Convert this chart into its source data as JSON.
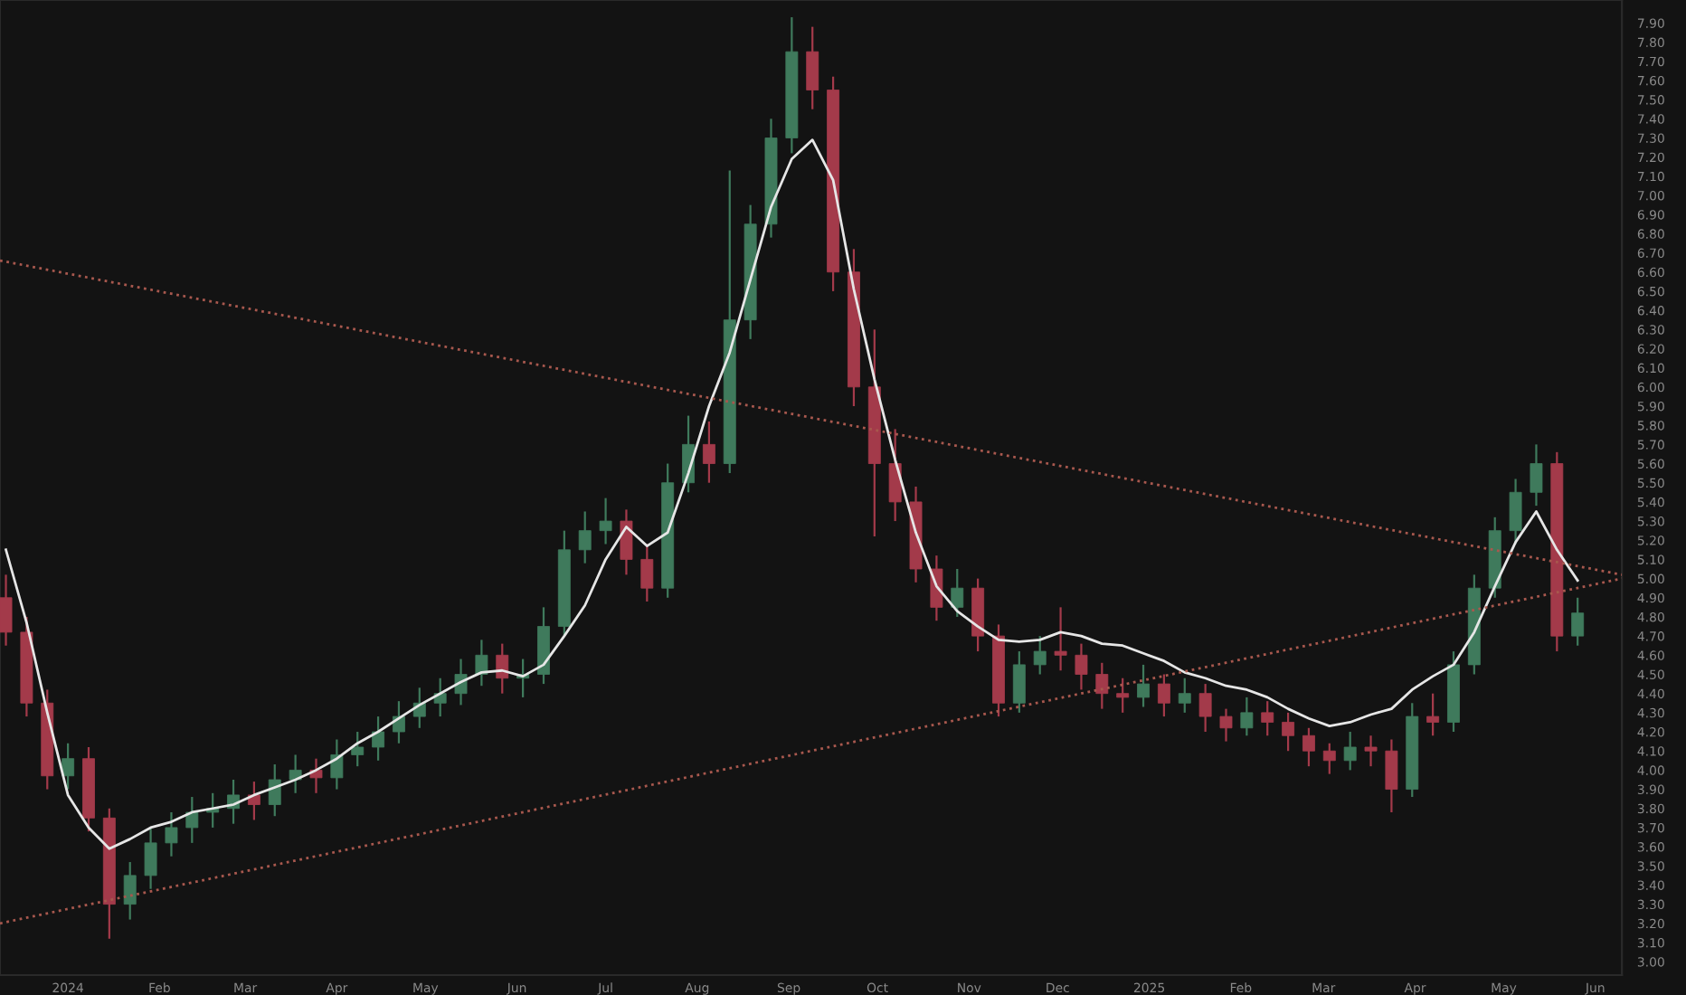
{
  "chart_data": {
    "type": "candlestick",
    "x": [
      "2023-12-11",
      "2023-12-18",
      "2023-12-25",
      "2024-01-01",
      "2024-01-08",
      "2024-01-15",
      "2024-01-22",
      "2024-01-29",
      "2024-02-05",
      "2024-02-12",
      "2024-02-19",
      "2024-02-26",
      "2024-03-04",
      "2024-03-11",
      "2024-03-18",
      "2024-03-25",
      "2024-04-01",
      "2024-04-08",
      "2024-04-15",
      "2024-04-22",
      "2024-04-29",
      "2024-05-06",
      "2024-05-13",
      "2024-05-20",
      "2024-05-27",
      "2024-06-03",
      "2024-06-10",
      "2024-06-17",
      "2024-06-24",
      "2024-07-01",
      "2024-07-08",
      "2024-07-15",
      "2024-07-22",
      "2024-07-29",
      "2024-08-05",
      "2024-08-12",
      "2024-08-19",
      "2024-08-26",
      "2024-09-02",
      "2024-09-09",
      "2024-09-16",
      "2024-09-23",
      "2024-09-30",
      "2024-10-07",
      "2024-10-14",
      "2024-10-21",
      "2024-10-28",
      "2024-11-04",
      "2024-11-11",
      "2024-11-18",
      "2024-11-25",
      "2024-12-02",
      "2024-12-09",
      "2024-12-16",
      "2024-12-23",
      "2024-12-30",
      "2025-01-06",
      "2025-01-13",
      "2025-01-20",
      "2025-01-27",
      "2025-02-03",
      "2025-02-10",
      "2025-02-17",
      "2025-02-24",
      "2025-03-03",
      "2025-03-10",
      "2025-03-17",
      "2025-03-24",
      "2025-03-31",
      "2025-04-07",
      "2025-04-14",
      "2025-04-21",
      "2025-04-28",
      "2025-05-05",
      "2025-05-12",
      "2025-05-19",
      "2025-05-26"
    ],
    "ohlc": [
      [
        4.9,
        5.02,
        4.65,
        4.72
      ],
      [
        4.72,
        4.8,
        4.28,
        4.35
      ],
      [
        4.35,
        4.42,
        3.9,
        3.97
      ],
      [
        3.97,
        4.14,
        3.9,
        4.06
      ],
      [
        4.06,
        4.12,
        3.68,
        3.75
      ],
      [
        3.75,
        3.8,
        3.12,
        3.3
      ],
      [
        3.3,
        3.52,
        3.22,
        3.45
      ],
      [
        3.45,
        3.7,
        3.38,
        3.62
      ],
      [
        3.62,
        3.78,
        3.55,
        3.7
      ],
      [
        3.7,
        3.86,
        3.62,
        3.78
      ],
      [
        3.78,
        3.88,
        3.7,
        3.8
      ],
      [
        3.8,
        3.95,
        3.72,
        3.87
      ],
      [
        3.87,
        3.94,
        3.74,
        3.82
      ],
      [
        3.82,
        4.03,
        3.76,
        3.95
      ],
      [
        3.95,
        4.08,
        3.88,
        4.0
      ],
      [
        4.0,
        4.06,
        3.88,
        3.96
      ],
      [
        3.96,
        4.16,
        3.9,
        4.08
      ],
      [
        4.08,
        4.2,
        4.02,
        4.12
      ],
      [
        4.12,
        4.28,
        4.05,
        4.2
      ],
      [
        4.2,
        4.36,
        4.14,
        4.28
      ],
      [
        4.28,
        4.43,
        4.22,
        4.35
      ],
      [
        4.35,
        4.48,
        4.28,
        4.4
      ],
      [
        4.4,
        4.58,
        4.34,
        4.5
      ],
      [
        4.5,
        4.68,
        4.44,
        4.6
      ],
      [
        4.6,
        4.66,
        4.4,
        4.48
      ],
      [
        4.48,
        4.58,
        4.38,
        4.5
      ],
      [
        4.5,
        4.85,
        4.45,
        4.75
      ],
      [
        4.75,
        5.25,
        4.7,
        5.15
      ],
      [
        5.15,
        5.35,
        5.08,
        5.25
      ],
      [
        5.25,
        5.42,
        5.18,
        5.3
      ],
      [
        5.3,
        5.36,
        5.02,
        5.1
      ],
      [
        5.1,
        5.18,
        4.88,
        4.95
      ],
      [
        4.95,
        5.6,
        4.9,
        5.5
      ],
      [
        5.5,
        5.85,
        5.45,
        5.7
      ],
      [
        5.7,
        5.82,
        5.5,
        5.6
      ],
      [
        5.6,
        7.13,
        5.55,
        6.35
      ],
      [
        6.35,
        6.95,
        6.25,
        6.85
      ],
      [
        6.85,
        7.4,
        6.78,
        7.3
      ],
      [
        7.3,
        7.93,
        7.22,
        7.75
      ],
      [
        7.75,
        7.88,
        7.45,
        7.55
      ],
      [
        7.55,
        7.62,
        6.5,
        6.6
      ],
      [
        6.6,
        6.72,
        5.9,
        6.0
      ],
      [
        6.0,
        6.3,
        5.22,
        5.6
      ],
      [
        5.6,
        5.78,
        5.3,
        5.4
      ],
      [
        5.4,
        5.48,
        4.98,
        5.05
      ],
      [
        5.05,
        5.12,
        4.78,
        4.85
      ],
      [
        4.85,
        5.05,
        4.8,
        4.95
      ],
      [
        4.95,
        5.0,
        4.62,
        4.7
      ],
      [
        4.7,
        4.76,
        4.28,
        4.35
      ],
      [
        4.35,
        4.62,
        4.3,
        4.55
      ],
      [
        4.55,
        4.7,
        4.5,
        4.62
      ],
      [
        4.62,
        4.85,
        4.52,
        4.6
      ],
      [
        4.6,
        4.66,
        4.42,
        4.5
      ],
      [
        4.5,
        4.56,
        4.32,
        4.4
      ],
      [
        4.4,
        4.48,
        4.3,
        4.38
      ],
      [
        4.38,
        4.55,
        4.33,
        4.45
      ],
      [
        4.45,
        4.5,
        4.28,
        4.35
      ],
      [
        4.35,
        4.48,
        4.3,
        4.4
      ],
      [
        4.4,
        4.45,
        4.2,
        4.28
      ],
      [
        4.28,
        4.32,
        4.15,
        4.22
      ],
      [
        4.22,
        4.38,
        4.18,
        4.3
      ],
      [
        4.3,
        4.36,
        4.18,
        4.25
      ],
      [
        4.25,
        4.3,
        4.1,
        4.18
      ],
      [
        4.18,
        4.22,
        4.02,
        4.1
      ],
      [
        4.1,
        4.14,
        3.98,
        4.05
      ],
      [
        4.05,
        4.2,
        4.0,
        4.12
      ],
      [
        4.12,
        4.18,
        4.02,
        4.1
      ],
      [
        4.1,
        4.16,
        3.78,
        3.9
      ],
      [
        3.9,
        4.35,
        3.86,
        4.28
      ],
      [
        4.28,
        4.4,
        4.18,
        4.25
      ],
      [
        4.25,
        4.62,
        4.2,
        4.55
      ],
      [
        4.55,
        5.02,
        4.5,
        4.95
      ],
      [
        4.95,
        5.32,
        4.9,
        5.25
      ],
      [
        5.25,
        5.52,
        5.18,
        5.45
      ],
      [
        5.45,
        5.7,
        5.38,
        5.6
      ],
      [
        5.6,
        5.66,
        4.62,
        4.7
      ],
      [
        4.7,
        4.9,
        4.65,
        4.82
      ]
    ],
    "series": [
      {
        "type": "line",
        "color": "#e6e6e6",
        "line_style": "solid",
        "x": [
          "2023-12-11",
          "2023-12-18",
          "2023-12-25",
          "2024-01-01",
          "2024-01-08",
          "2024-01-15",
          "2024-01-22",
          "2024-01-29",
          "2024-02-05",
          "2024-02-12",
          "2024-02-19",
          "2024-02-26",
          "2024-03-04",
          "2024-03-11",
          "2024-03-18",
          "2024-03-25",
          "2024-04-01",
          "2024-04-08",
          "2024-04-15",
          "2024-04-22",
          "2024-04-29",
          "2024-05-06",
          "2024-05-13",
          "2024-05-20",
          "2024-05-27",
          "2024-06-03",
          "2024-06-10",
          "2024-06-17",
          "2024-06-24",
          "2024-07-01",
          "2024-07-08",
          "2024-07-15",
          "2024-07-22",
          "2024-07-29",
          "2024-08-05",
          "2024-08-12",
          "2024-08-19",
          "2024-08-26",
          "2024-09-02",
          "2024-09-09",
          "2024-09-16",
          "2024-09-23",
          "2024-09-30",
          "2024-10-07",
          "2024-10-14",
          "2024-10-21",
          "2024-10-28",
          "2024-11-04",
          "2024-11-11",
          "2024-11-18",
          "2024-11-25",
          "2024-12-02",
          "2024-12-09",
          "2024-12-16",
          "2024-12-23",
          "2024-12-30",
          "2025-01-06",
          "2025-01-13",
          "2025-01-20",
          "2025-01-27",
          "2025-02-03",
          "2025-02-10",
          "2025-02-17",
          "2025-02-24",
          "2025-03-03",
          "2025-03-10",
          "2025-03-17",
          "2025-03-24",
          "2025-03-31",
          "2025-04-07",
          "2025-04-14",
          "2025-04-21",
          "2025-04-28",
          "2025-05-05",
          "2025-05-12",
          "2025-05-19",
          "2025-05-26"
        ],
        "values": [
          5.15,
          4.77,
          4.3,
          3.87,
          3.7,
          3.59,
          3.64,
          3.7,
          3.73,
          3.78,
          3.8,
          3.82,
          3.87,
          3.91,
          3.95,
          4.0,
          4.06,
          4.14,
          4.2,
          4.27,
          4.34,
          4.4,
          4.46,
          4.51,
          4.52,
          4.49,
          4.55,
          4.7,
          4.86,
          5.1,
          5.27,
          5.17,
          5.24,
          5.55,
          5.9,
          6.18,
          6.56,
          6.94,
          7.19,
          7.29,
          7.08,
          6.51,
          6.04,
          5.62,
          5.24,
          4.96,
          4.83,
          4.75,
          4.68,
          4.67,
          4.68,
          4.72,
          4.7,
          4.66,
          4.65,
          4.61,
          4.57,
          4.51,
          4.48,
          4.44,
          4.42,
          4.38,
          4.32,
          4.27,
          4.23,
          4.25,
          4.29,
          4.32,
          4.42,
          4.49,
          4.55,
          4.72,
          4.96,
          5.19,
          5.35,
          5.15,
          4.99
        ]
      },
      {
        "type": "line",
        "color": "#a8584e",
        "line_style": "dotted",
        "x": [
          "2023-12-09",
          "2025-06-10"
        ],
        "values": [
          6.66,
          5.02
        ]
      },
      {
        "type": "line",
        "color": "#a8584e",
        "line_style": "dotted",
        "x": [
          "2023-12-09",
          "2025-06-10"
        ],
        "values": [
          3.2,
          5.0
        ]
      }
    ],
    "xlim": [
      "2023-12-09",
      "2025-06-10"
    ],
    "xticks": [
      {
        "value": "2024-01-01",
        "label": "2024"
      },
      {
        "value": "2024-02-01",
        "label": "Feb"
      },
      {
        "value": "2024-03-01",
        "label": "Mar"
      },
      {
        "value": "2024-04-01",
        "label": "Apr"
      },
      {
        "value": "2024-05-01",
        "label": "May"
      },
      {
        "value": "2024-06-01",
        "label": "Jun"
      },
      {
        "value": "2024-07-01",
        "label": "Jul"
      },
      {
        "value": "2024-08-01",
        "label": "Aug"
      },
      {
        "value": "2024-09-01",
        "label": "Sep"
      },
      {
        "value": "2024-10-01",
        "label": "Oct"
      },
      {
        "value": "2024-11-01",
        "label": "Nov"
      },
      {
        "value": "2024-12-01",
        "label": "Dec"
      },
      {
        "value": "2025-01-01",
        "label": "2025"
      },
      {
        "value": "2025-02-01",
        "label": "Feb"
      },
      {
        "value": "2025-03-01",
        "label": "Mar"
      },
      {
        "value": "2025-04-01",
        "label": "Apr"
      },
      {
        "value": "2025-05-01",
        "label": "May"
      },
      {
        "value": "2025-06-01",
        "label": "Jun"
      }
    ],
    "ylim": [
      2.93,
      8.02
    ],
    "yticks": [
      {
        "value": 3.0,
        "label": "3.00"
      },
      {
        "value": 3.1,
        "label": "3.10"
      },
      {
        "value": 3.2,
        "label": "3.20"
      },
      {
        "value": 3.3,
        "label": "3.30"
      },
      {
        "value": 3.4,
        "label": "3.40"
      },
      {
        "value": 3.5,
        "label": "3.50"
      },
      {
        "value": 3.6,
        "label": "3.60"
      },
      {
        "value": 3.7,
        "label": "3.70"
      },
      {
        "value": 3.8,
        "label": "3.80"
      },
      {
        "value": 3.9,
        "label": "3.90"
      },
      {
        "value": 4.0,
        "label": "4.00"
      },
      {
        "value": 4.1,
        "label": "4.10"
      },
      {
        "value": 4.2,
        "label": "4.20"
      },
      {
        "value": 4.3,
        "label": "4.30"
      },
      {
        "value": 4.4,
        "label": "4.40"
      },
      {
        "value": 4.5,
        "label": "4.50"
      },
      {
        "value": 4.6,
        "label": "4.60"
      },
      {
        "value": 4.7,
        "label": "4.70"
      },
      {
        "value": 4.8,
        "label": "4.80"
      },
      {
        "value": 4.9,
        "label": "4.90"
      },
      {
        "value": 5.0,
        "label": "5.00"
      },
      {
        "value": 5.1,
        "label": "5.10"
      },
      {
        "value": 5.2,
        "label": "5.20"
      },
      {
        "value": 5.3,
        "label": "5.30"
      },
      {
        "value": 5.4,
        "label": "5.40"
      },
      {
        "value": 5.5,
        "label": "5.50"
      },
      {
        "value": 5.6,
        "label": "5.60"
      },
      {
        "value": 5.7,
        "label": "5.70"
      },
      {
        "value": 5.8,
        "label": "5.80"
      },
      {
        "value": 5.9,
        "label": "5.90"
      },
      {
        "value": 6.0,
        "label": "6.00"
      },
      {
        "value": 6.1,
        "label": "6.10"
      },
      {
        "value": 6.2,
        "label": "6.20"
      },
      {
        "value": 6.3,
        "label": "6.30"
      },
      {
        "value": 6.4,
        "label": "6.40"
      },
      {
        "value": 6.5,
        "label": "6.50"
      },
      {
        "value": 6.6,
        "label": "6.60"
      },
      {
        "value": 6.7,
        "label": "6.70"
      },
      {
        "value": 6.8,
        "label": "6.80"
      },
      {
        "value": 6.9,
        "label": "6.90"
      },
      {
        "value": 7.0,
        "label": "7.00"
      },
      {
        "value": 7.1,
        "label": "7.10"
      },
      {
        "value": 7.2,
        "label": "7.20"
      },
      {
        "value": 7.3,
        "label": "7.30"
      },
      {
        "value": 7.4,
        "label": "7.40"
      },
      {
        "value": 7.5,
        "label": "7.50"
      },
      {
        "value": 7.6,
        "label": "7.60"
      },
      {
        "value": 7.7,
        "label": "7.70"
      },
      {
        "value": 7.8,
        "label": "7.80"
      },
      {
        "value": 7.9,
        "label": "7.90"
      }
    ],
    "grid": false
  }
}
